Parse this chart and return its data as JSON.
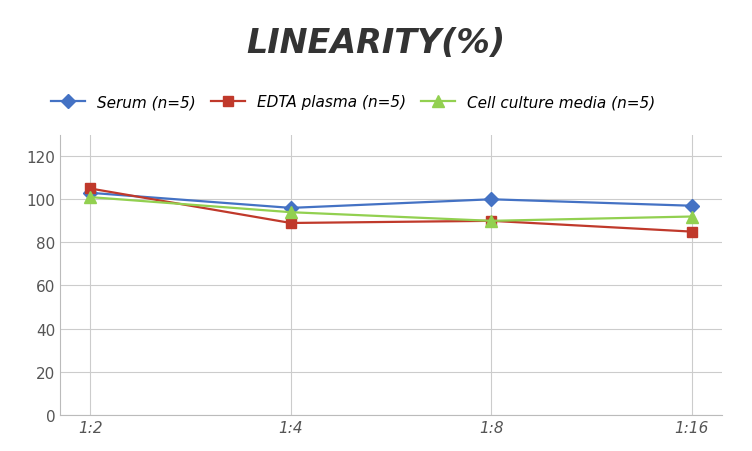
{
  "title": "LINEARITY(%)",
  "x_labels": [
    "1:2",
    "1:4",
    "1:8",
    "1:16"
  ],
  "series": [
    {
      "name": "Serum (n=5)",
      "values": [
        103,
        96,
        100,
        97
      ],
      "color": "#4472C4",
      "marker": "D",
      "marker_size": 7
    },
    {
      "name": "EDTA plasma (n=5)",
      "values": [
        105,
        89,
        90,
        85
      ],
      "color": "#C0392B",
      "marker": "s",
      "marker_size": 7
    },
    {
      "name": "Cell culture media (n=5)",
      "values": [
        101,
        94,
        90,
        92
      ],
      "color": "#92D050",
      "marker": "^",
      "marker_size": 8
    }
  ],
  "ylim": [
    0,
    130
  ],
  "yticks": [
    0,
    20,
    40,
    60,
    80,
    100,
    120
  ],
  "grid_color": "#CCCCCC",
  "background_color": "#FFFFFF",
  "title_fontsize": 24,
  "legend_fontsize": 11
}
